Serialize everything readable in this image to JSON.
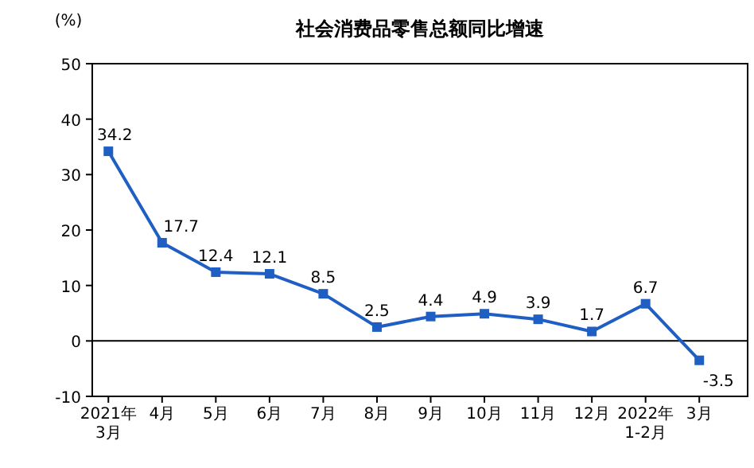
{
  "chart_data": {
    "type": "line",
    "title": "社会消费品零售总额同比增速",
    "ylabel": "(%)",
    "categories": [
      "2021年\n3月",
      "4月",
      "5月",
      "6月",
      "7月",
      "8月",
      "9月",
      "10月",
      "11月",
      "12月",
      "2022年\n1-2月",
      "3月"
    ],
    "series": [
      {
        "color": "#1f5fc4",
        "values": [
          34.2,
          17.7,
          12.4,
          12.1,
          8.5,
          2.5,
          4.4,
          4.9,
          3.9,
          1.7,
          6.7,
          -3.5
        ]
      }
    ],
    "ylim": [
      -10,
      50
    ],
    "yticks": [
      -10,
      0,
      10,
      20,
      30,
      40,
      50
    ],
    "ref_lines": [
      {
        "axis": "y",
        "value": 0,
        "color": "#000000"
      }
    ],
    "data_labels": true,
    "marker": "square",
    "line_style": "solid"
  }
}
